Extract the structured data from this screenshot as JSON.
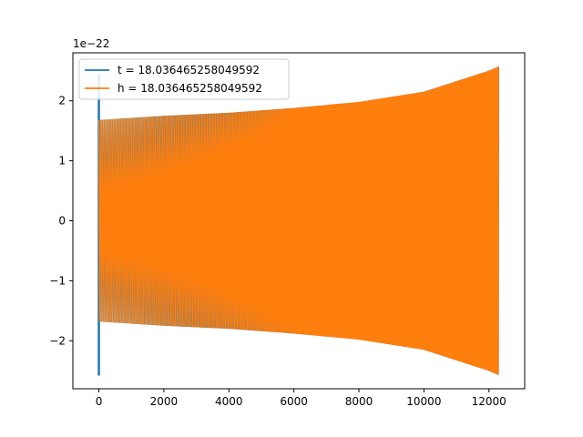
{
  "chart_data": {
    "type": "line",
    "title": "",
    "xlabel": "",
    "ylabel": "",
    "y_offset_text": "1e−22",
    "xlim": [
      -800,
      13100
    ],
    "ylim": [
      -2.8,
      2.8
    ],
    "x_ticks": [
      0,
      2000,
      4000,
      6000,
      8000,
      10000,
      12000
    ],
    "x_tick_labels": [
      "0",
      "2000",
      "4000",
      "6000",
      "8000",
      "10000",
      "12000"
    ],
    "y_ticks": [
      -2,
      -1,
      0,
      1,
      2
    ],
    "y_tick_labels": [
      "−2",
      "−1",
      "0",
      "1",
      "2"
    ],
    "grid": false,
    "legend_position": "upper-left",
    "series": [
      {
        "name": "t = 18.036465258049592",
        "color": "#1f77b4",
        "x_range": [
          0,
          12300
        ],
        "spike_at_start": {
          "x": 0,
          "max": 2.45,
          "min": -2.58
        },
        "envelope_x": [
          0,
          2000,
          4000,
          6000,
          8000,
          10000,
          12000,
          12300
        ],
        "envelope_upper": [
          1.68,
          1.75,
          1.8,
          1.88,
          1.98,
          2.15,
          2.5,
          2.57
        ],
        "envelope_lower": [
          -1.68,
          -1.75,
          -1.8,
          -1.88,
          -1.98,
          -2.15,
          -2.5,
          -2.57
        ]
      },
      {
        "name": "h = 18.036465258049592",
        "color": "#ff7f0e",
        "x_range": [
          0,
          12300
        ],
        "envelope_x": [
          0,
          2000,
          4000,
          6000,
          8000,
          10000,
          12000,
          12300
        ],
        "envelope_upper": [
          1.68,
          1.75,
          1.8,
          1.88,
          1.98,
          2.15,
          2.5,
          2.57
        ],
        "envelope_lower": [
          -1.68,
          -1.75,
          -1.8,
          -1.88,
          -1.98,
          -2.15,
          -2.5,
          -2.57
        ]
      }
    ]
  }
}
